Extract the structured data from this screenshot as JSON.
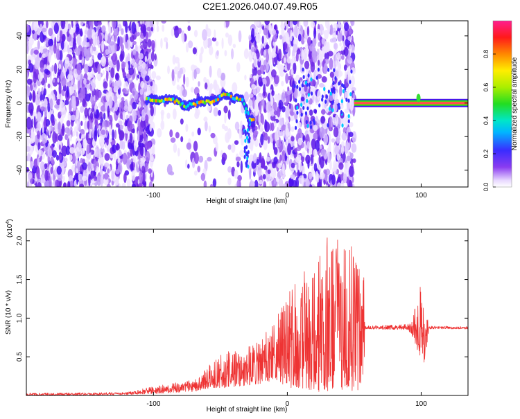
{
  "title": "C2E1.2026.040.07.49.R05",
  "chart_data": [
    {
      "type": "heatmap",
      "xlabel": "Height of straight line (km)",
      "ylabel": "Frequency (Hz)",
      "xlim": [
        -195,
        135
      ],
      "ylim": [
        -50,
        49
      ],
      "x_ticks": [
        -100,
        0,
        100
      ],
      "x_tick_labels": [
        "-100",
        "0",
        "100"
      ],
      "y_ticks": [
        -40,
        -20,
        0,
        20,
        40
      ],
      "y_tick_labels": [
        "-40",
        "-20",
        "0",
        "20",
        "40"
      ],
      "colorbar": {
        "label": "Normalized spectral amplitude",
        "range": [
          0,
          1
        ],
        "ticks": [
          0.0,
          0.2,
          0.4,
          0.6,
          0.8
        ],
        "tick_labels": [
          "0.0",
          "0.2",
          "0.4",
          "0.6",
          "0.8"
        ]
      },
      "ridge": [
        {
          "x": -105,
          "f": 2
        },
        {
          "x": -95,
          "f": 2
        },
        {
          "x": -85,
          "f": 2
        },
        {
          "x": -75,
          "f": -2
        },
        {
          "x": -65,
          "f": 1
        },
        {
          "x": -55,
          "f": 1
        },
        {
          "x": -48,
          "f": 5
        },
        {
          "x": -40,
          "f": 3
        },
        {
          "x": -33,
          "f": 2
        },
        {
          "x": -30,
          "f": -5
        },
        {
          "x": -28,
          "f": -9
        },
        {
          "x": -25,
          "f": -10
        },
        {
          "x": 10,
          "f": 8
        },
        {
          "x": 50,
          "f": 0
        },
        {
          "x": 95,
          "f": 0
        },
        {
          "x": 98,
          "f": 2
        },
        {
          "x": 100,
          "f": -1
        },
        {
          "x": 105,
          "f": 0
        },
        {
          "x": 135,
          "f": 0
        }
      ]
    },
    {
      "type": "line",
      "xlabel": "Height of straight line (km)",
      "ylabel": "SNR (10 * v/v)",
      "multiplier_label": "(x10",
      "multiplier_exponent": "4",
      "multiplier_close": ")",
      "xlim": [
        -195,
        135
      ],
      "ylim": [
        0,
        2.15
      ],
      "x_ticks": [
        -100,
        0,
        100
      ],
      "x_tick_labels": [
        "-100",
        "0",
        "100"
      ],
      "y_ticks": [
        0.5,
        1.0,
        1.5,
        2.0
      ],
      "y_tick_labels": [
        "0.5",
        "1.0",
        "1.5",
        "2.0"
      ],
      "series": [
        {
          "name": "SNR",
          "color": "#ee3333",
          "envelope": [
            {
              "x": -195,
              "lo": 0.0,
              "hi": 0.03
            },
            {
              "x": -120,
              "lo": 0.01,
              "hi": 0.04
            },
            {
              "x": -105,
              "lo": 0.02,
              "hi": 0.1
            },
            {
              "x": -90,
              "lo": 0.03,
              "hi": 0.15
            },
            {
              "x": -70,
              "lo": 0.05,
              "hi": 0.2
            },
            {
              "x": -55,
              "lo": 0.1,
              "hi": 0.45
            },
            {
              "x": -45,
              "lo": 0.1,
              "hi": 0.6
            },
            {
              "x": -35,
              "lo": 0.12,
              "hi": 0.55
            },
            {
              "x": -20,
              "lo": 0.15,
              "hi": 0.75
            },
            {
              "x": -10,
              "lo": 0.2,
              "hi": 0.95
            },
            {
              "x": 0,
              "lo": 0.1,
              "hi": 1.35
            },
            {
              "x": 10,
              "lo": 0.1,
              "hi": 1.55
            },
            {
              "x": 20,
              "lo": 0.05,
              "hi": 1.75
            },
            {
              "x": 30,
              "lo": 0.05,
              "hi": 2.1
            },
            {
              "x": 40,
              "lo": 0.05,
              "hi": 2.0
            },
            {
              "x": 50,
              "lo": 0.05,
              "hi": 2.05
            },
            {
              "x": 57,
              "lo": 0.05,
              "hi": 1.7
            },
            {
              "x": 58,
              "lo": 0.86,
              "hi": 0.9
            },
            {
              "x": 90,
              "lo": 0.85,
              "hi": 0.92
            },
            {
              "x": 94,
              "lo": 0.75,
              "hi": 1.05
            },
            {
              "x": 100,
              "lo": 0.45,
              "hi": 1.45
            },
            {
              "x": 103,
              "lo": 0.42,
              "hi": 1.15
            },
            {
              "x": 106,
              "lo": 0.86,
              "hi": 0.9
            },
            {
              "x": 135,
              "lo": 0.86,
              "hi": 0.89
            }
          ]
        }
      ]
    }
  ]
}
